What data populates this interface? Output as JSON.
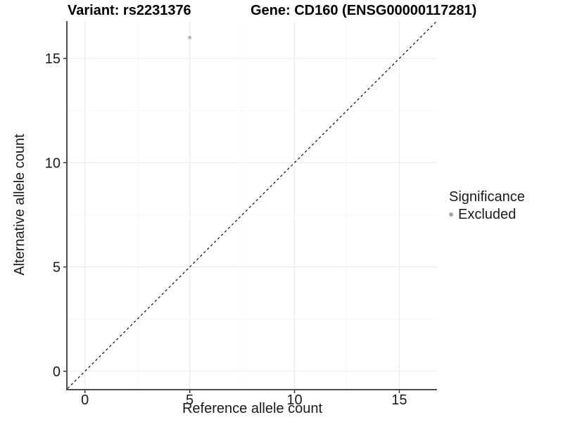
{
  "chart_data": {
    "type": "scatter",
    "titles": {
      "variant": "Variant: rs2231376",
      "gene": "Gene: CD160 (ENSG00000117281)"
    },
    "xlabel": "Reference allele count",
    "ylabel": "Alternative allele count",
    "xlim": [
      -0.83,
      16.8
    ],
    "ylim": [
      -0.85,
      16.79
    ],
    "x_ticks": [
      0,
      5,
      10,
      15
    ],
    "y_ticks": [
      0,
      5,
      10,
      15
    ],
    "x_minor_ticks": [
      2.5,
      7.5,
      12.5
    ],
    "y_minor_ticks": [
      2.5,
      7.5,
      12.5
    ],
    "grid": "major and minor gridlines, white panel background",
    "points": [
      {
        "x": 5,
        "y": 16,
        "significance": "Excluded",
        "color": "#b5b5b5"
      }
    ],
    "reference_line": {
      "type": "identity y=x",
      "style": "dashed",
      "color": "#1a1a1a"
    },
    "legend": {
      "title": "Significance",
      "position": "right",
      "entries": [
        {
          "label": "Excluded",
          "marker": "circle",
          "color": "#a6a6a6"
        }
      ]
    }
  },
  "style": {
    "grid_major": "#ebebeb",
    "grid_minor": "#f5f5f5",
    "axis_line": "#4d4d4d",
    "tick_color": "#333333",
    "background": "#ffffff"
  }
}
